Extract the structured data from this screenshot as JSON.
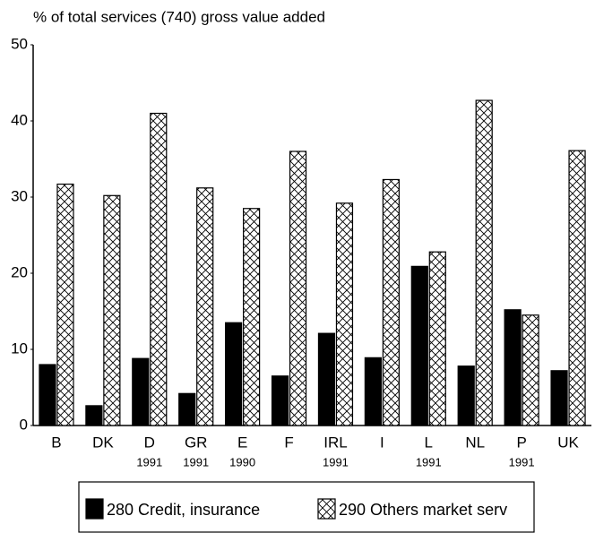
{
  "chart_data": {
    "type": "bar",
    "title": "% of total services (740) gross value added",
    "categories": [
      "B",
      "DK",
      "D",
      "GR",
      "E",
      "F",
      "IRL",
      "I",
      "L",
      "NL",
      "P",
      "UK"
    ],
    "category_years": [
      null,
      null,
      "1991",
      "1991",
      "1990",
      null,
      "1991",
      null,
      "1991",
      null,
      "1991",
      null
    ],
    "series": [
      {
        "name": "280 Credit, insurance",
        "color": "#000000",
        "hatch": false,
        "values": [
          8.0,
          2.6,
          8.8,
          4.2,
          13.5,
          6.5,
          12.1,
          8.9,
          20.9,
          7.8,
          15.2,
          7.2
        ]
      },
      {
        "name": "290 Others market serv",
        "color": "#000000",
        "hatch": true,
        "values": [
          31.7,
          30.2,
          41.0,
          31.2,
          28.5,
          36.0,
          29.2,
          32.3,
          22.8,
          42.7,
          14.5,
          36.1
        ]
      }
    ],
    "ylim": [
      0,
      50
    ],
    "yticks": [
      0,
      10,
      20,
      30,
      40,
      50
    ],
    "grid": false
  }
}
